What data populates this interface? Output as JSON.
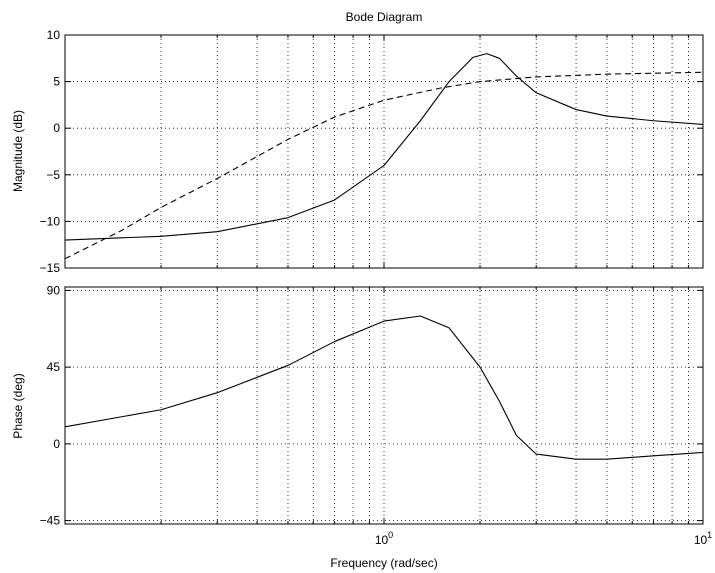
{
  "chart_data": {
    "type": "line",
    "title": "Bode Diagram",
    "xlabel": "Frequency (rad/sec)",
    "xscale": "log",
    "xlim": [
      0.1,
      10
    ],
    "x_tick_labels": [
      {
        "base": "10",
        "exp": "0",
        "value": 1
      },
      {
        "base": "10",
        "exp": "1",
        "value": 10
      }
    ],
    "grid": true,
    "panels": [
      {
        "name": "magnitude",
        "ylabel": "Magnitude (dB)",
        "ylim": [
          -15,
          10
        ],
        "yticks": [
          10,
          5,
          0,
          -5,
          -10,
          -15
        ],
        "ytick_labels": [
          "10",
          "5",
          "0",
          "−5",
          "−10",
          "−15"
        ],
        "series": [
          {
            "style": "solid",
            "x": [
              0.1,
              0.2,
              0.3,
              0.5,
              0.7,
              1.0,
              1.3,
              1.6,
              1.9,
              2.1,
              2.3,
              2.6,
              3.0,
              4.0,
              5.0,
              7.0,
              10.0
            ],
            "y": [
              -12.0,
              -11.6,
              -11.1,
              -9.6,
              -7.7,
              -4.0,
              0.8,
              5.0,
              7.6,
              8.0,
              7.5,
              5.6,
              3.8,
              2.0,
              1.3,
              0.8,
              0.4
            ]
          },
          {
            "style": "dashed",
            "x": [
              0.1,
              0.15,
              0.2,
              0.3,
              0.5,
              0.7,
              1.0,
              1.5,
              2.0,
              3.0,
              5.0,
              10.0
            ],
            "y": [
              -14.0,
              -11.0,
              -8.5,
              -5.4,
              -1.2,
              1.2,
              3.0,
              4.3,
              5.0,
              5.5,
              5.8,
              6.0
            ]
          }
        ]
      },
      {
        "name": "phase",
        "ylabel": "Phase (deg)",
        "ylim": [
          -47,
          92
        ],
        "yticks": [
          90,
          45,
          0,
          -45
        ],
        "ytick_labels": [
          "90",
          "45",
          "0",
          "−45"
        ],
        "series": [
          {
            "style": "solid",
            "x": [
              0.1,
              0.2,
              0.3,
              0.5,
              0.7,
              1.0,
              1.3,
              1.6,
              2.0,
              2.3,
              2.6,
              3.0,
              4.0,
              5.0,
              7.0,
              10.0
            ],
            "y": [
              10,
              20,
              30,
              46,
              60,
              72,
              75,
              68,
              45,
              25,
              5,
              -6,
              -9,
              -9,
              -7,
              -5
            ]
          }
        ]
      }
    ]
  }
}
